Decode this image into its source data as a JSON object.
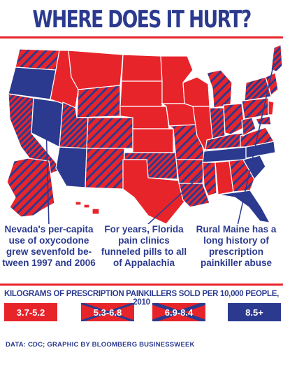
{
  "title": "WHERE DOES IT HURT?",
  "colors": {
    "red": "#e8242b",
    "blue": "#2b3a8f",
    "hatch": "#2b3a8f"
  },
  "callouts": [
    {
      "id": "nevada",
      "text": "Nevada's per-capita use of oxycodone grew sevenfold be-tween 1997 and 2006"
    },
    {
      "id": "florida",
      "text": "For years, Florida pain clinics funneled pills to all of Appalachia"
    },
    {
      "id": "maine",
      "text": "Rural Maine has a long history of prescription painkiller abuse"
    }
  ],
  "legend": {
    "title": "KILOGRAMS OF PRESCRIPTION PAINKILLERS SOLD PER 10,000 PEOPLE, 2010",
    "items": [
      {
        "label": "3.7-5.2",
        "pattern": "solid-red"
      },
      {
        "label": "5.3-6.8",
        "pattern": "red-sparse-blue-hatch"
      },
      {
        "label": "6.9-8.4",
        "pattern": "red-dense-blue-hatch"
      },
      {
        "label": "8.5+",
        "pattern": "solid-blue"
      }
    ]
  },
  "source": "DATA: CDC; GRAPHIC BY BLOOMBERG BUSINESSWEEK"
}
